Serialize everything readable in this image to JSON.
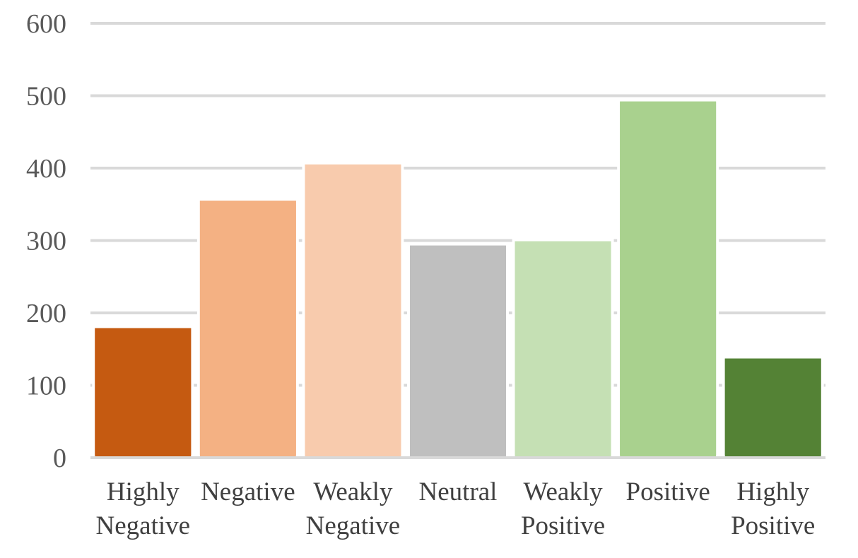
{
  "chart_data": {
    "type": "bar",
    "categories": [
      [
        "Highly",
        "Negative"
      ],
      [
        "Negative"
      ],
      [
        "Weakly",
        "Negative"
      ],
      [
        "Neutral"
      ],
      [
        "Weakly",
        "Positive"
      ],
      [
        "Positive"
      ],
      [
        "Highly",
        "Positive"
      ]
    ],
    "values": [
      179,
      355,
      405,
      293,
      299,
      492,
      137
    ],
    "colors": [
      "#c55a11",
      "#f4b183",
      "#f8cbad",
      "#bfbfbf",
      "#c5e0b4",
      "#a9d18e",
      "#548235"
    ],
    "ylim": [
      0,
      600
    ],
    "yticks": [
      "0",
      "100",
      "200",
      "300",
      "400",
      "500",
      "600"
    ],
    "grid": true,
    "title": "",
    "xlabel": "",
    "ylabel": ""
  }
}
